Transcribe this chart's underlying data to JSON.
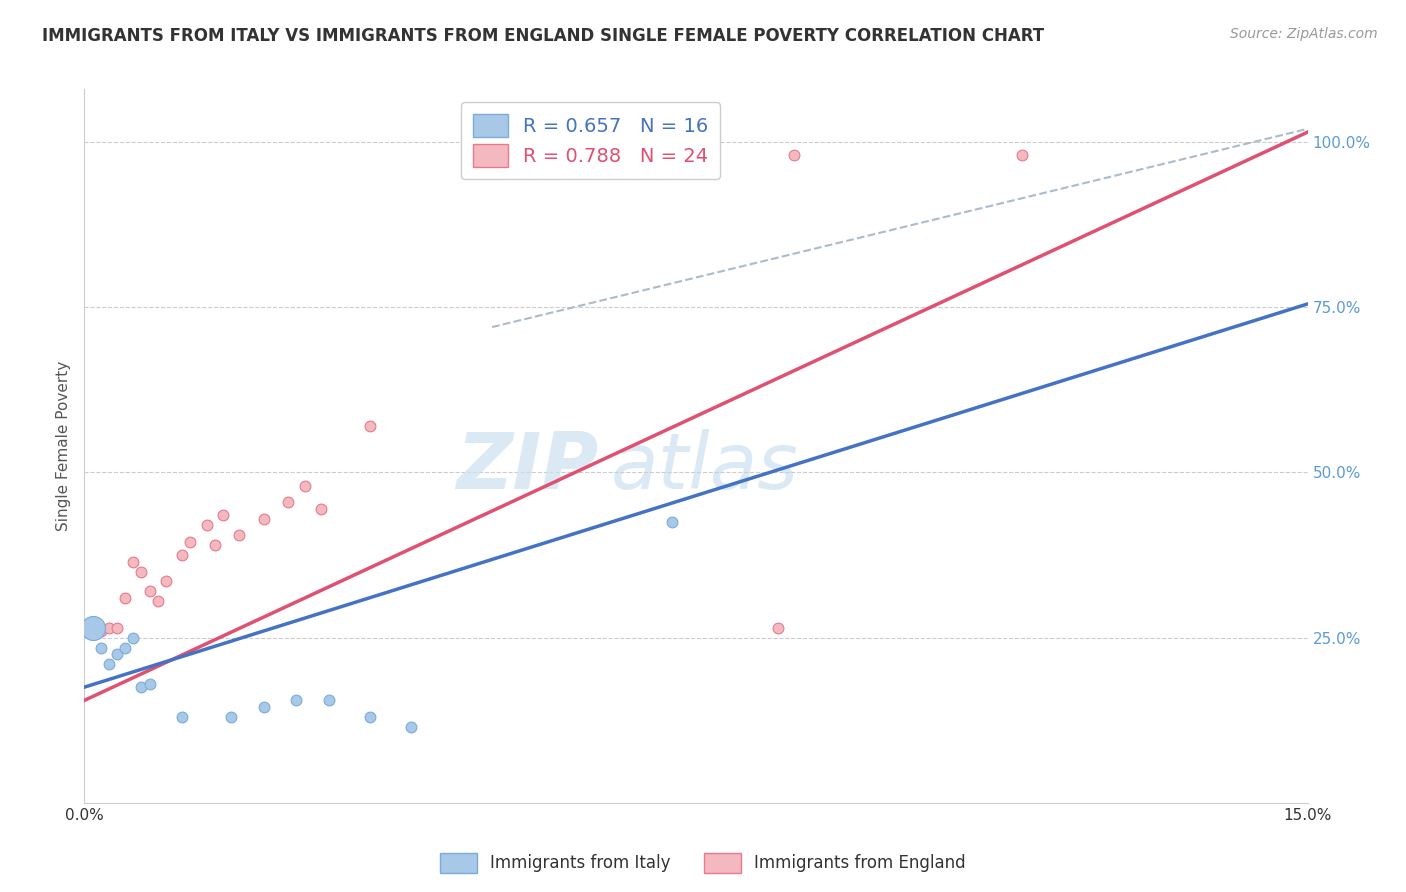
{
  "title": "IMMIGRANTS FROM ITALY VS IMMIGRANTS FROM ENGLAND SINGLE FEMALE POVERTY CORRELATION CHART",
  "source_text": "Source: ZipAtlas.com",
  "ylabel": "Single Female Poverty",
  "xlim": [
    0.0,
    0.15
  ],
  "ylim": [
    0.0,
    1.08
  ],
  "xticks": [
    0.0,
    0.015,
    0.03,
    0.045,
    0.06,
    0.075,
    0.09,
    0.105,
    0.12,
    0.135,
    0.15
  ],
  "xticklabels": [
    "0.0%",
    "",
    "",
    "",
    "",
    "",
    "",
    "",
    "",
    "",
    "15.0%"
  ],
  "ytick_positions": [
    0.0,
    0.25,
    0.5,
    0.75,
    1.0
  ],
  "ytick_labels": [
    "",
    "25.0%",
    "50.0%",
    "75.0%",
    "100.0%"
  ],
  "italy_color": "#a8c8e8",
  "italy_edge_color": "#7aabdb",
  "england_color": "#f4b8c0",
  "england_edge_color": "#e87a8a",
  "italy_line_color": "#4472c4",
  "england_line_color": "#e05070",
  "italy_R": 0.657,
  "italy_N": 16,
  "england_R": 0.788,
  "england_N": 24,
  "watermark_text": "ZIP",
  "watermark_text2": "atlas",
  "italy_scatter_x": [
    0.001,
    0.002,
    0.003,
    0.004,
    0.005,
    0.006,
    0.007,
    0.008,
    0.012,
    0.018,
    0.022,
    0.026,
    0.03,
    0.035,
    0.04,
    0.072
  ],
  "italy_scatter_y": [
    0.265,
    0.235,
    0.21,
    0.225,
    0.235,
    0.25,
    0.175,
    0.18,
    0.13,
    0.13,
    0.145,
    0.155,
    0.155,
    0.13,
    0.115,
    0.425
  ],
  "italy_scatter_size": [
    300,
    60,
    60,
    60,
    60,
    60,
    60,
    60,
    60,
    60,
    60,
    60,
    60,
    60,
    60,
    60
  ],
  "england_scatter_x": [
    0.001,
    0.002,
    0.003,
    0.004,
    0.005,
    0.006,
    0.007,
    0.008,
    0.009,
    0.01,
    0.012,
    0.013,
    0.015,
    0.016,
    0.017,
    0.019,
    0.022,
    0.025,
    0.027,
    0.029,
    0.035,
    0.085,
    0.087,
    0.115
  ],
  "england_scatter_y": [
    0.265,
    0.26,
    0.265,
    0.265,
    0.31,
    0.365,
    0.35,
    0.32,
    0.305,
    0.335,
    0.375,
    0.395,
    0.42,
    0.39,
    0.435,
    0.405,
    0.43,
    0.455,
    0.48,
    0.445,
    0.57,
    0.265,
    0.98,
    0.98
  ],
  "england_scatter_size": [
    60,
    60,
    60,
    60,
    60,
    60,
    60,
    60,
    60,
    60,
    60,
    60,
    60,
    60,
    60,
    60,
    60,
    60,
    60,
    60,
    60,
    60,
    60,
    60
  ],
  "italy_line_x": [
    0.0,
    0.15
  ],
  "italy_line_y": [
    0.175,
    0.755
  ],
  "england_line_x": [
    0.0,
    0.15
  ],
  "england_line_y": [
    0.155,
    1.015
  ],
  "ref_line_x": [
    0.05,
    0.15
  ],
  "ref_line_y": [
    0.72,
    1.02
  ],
  "background_color": "#ffffff",
  "grid_color": "#cccccc",
  "title_color": "#333333",
  "axis_label_color": "#555555",
  "ytick_right_color": "#5b9bd5",
  "legend_italy_color": "#4472c4",
  "legend_england_color": "#e05070"
}
